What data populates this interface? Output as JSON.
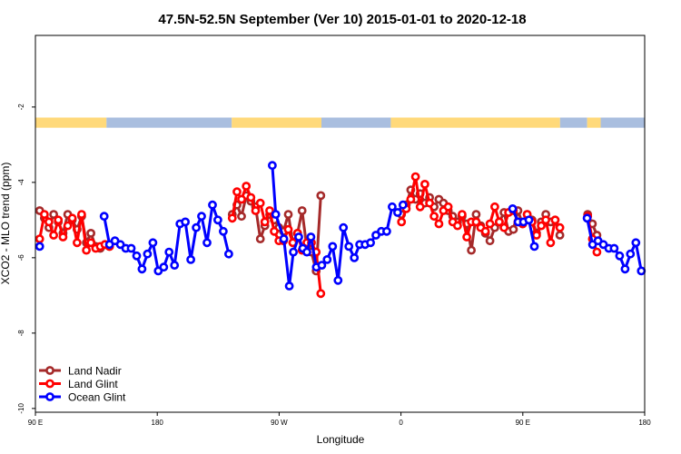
{
  "chart_data": {
    "type": "line",
    "title": "47.5N-52.5N September (Ver 10)   2015-01-01 to 2020-12-18",
    "xlabel": "Longitude",
    "ylabel": "XCO2 - MLO trend (ppm)",
    "xlim": [
      90,
      450
    ],
    "ylim": [
      -10.1,
      -0.1
    ],
    "x_ticks": [
      {
        "value": 90,
        "label": "90 E"
      },
      {
        "value": 162,
        "label": "180"
      },
      {
        "value": 234,
        "label": "90 W"
      },
      {
        "value": 306,
        "label": "0"
      },
      {
        "value": 378,
        "label": "90 E"
      },
      {
        "value": 450,
        "label": "180"
      }
    ],
    "y_ticks": [
      {
        "value": -2,
        "label": "-2"
      },
      {
        "value": -4,
        "label": "-4"
      },
      {
        "value": -6,
        "label": "-6"
      },
      {
        "value": -8,
        "label": "-8"
      },
      {
        "value": -10,
        "label": "-10"
      }
    ],
    "grid": false,
    "legend_position": "bottom-left",
    "land_ocean_strip": {
      "y_range": [
        -2.55,
        -2.28
      ],
      "land_color": "#FFD97A",
      "ocean_color": "#A9BEDF",
      "segments": [
        {
          "type": "land",
          "from": 90,
          "to": 132
        },
        {
          "type": "ocean",
          "from": 132,
          "to": 206
        },
        {
          "type": "land",
          "from": 206,
          "to": 259
        },
        {
          "type": "ocean",
          "from": 259,
          "to": 300
        },
        {
          "type": "land",
          "from": 300,
          "to": 400
        },
        {
          "type": "ocean",
          "from": 400,
          "to": 416
        },
        {
          "type": "land",
          "from": 416,
          "to": 424
        },
        {
          "type": "ocean",
          "from": 424,
          "to": 450
        }
      ]
    },
    "series": [
      {
        "name": "Land Nadir",
        "color": "#A52A2A",
        "segments": [
          {
            "x": [
              92.5,
              95.3,
              98.0,
              100.8,
              103.5,
              106.3,
              109.1,
              111.8,
              114.6,
              117.3,
              120.1,
              122.8,
              125.6,
              128.3,
              131.1,
              133.8
            ],
            "y": [
              -4.75,
              -4.95,
              -5.2,
              -4.85,
              -5.05,
              -5.35,
              -4.85,
              -5.0,
              -5.25,
              -4.9,
              -5.6,
              -5.35,
              -5.7,
              -5.75,
              -5.65,
              -5.7
            ]
          },
          {
            "x": [
              206.3,
              209.1,
              211.8,
              214.6,
              217.3,
              220.1,
              222.9,
              225.6,
              228.4,
              231.1,
              233.9,
              236.6,
              239.4,
              242.1,
              244.9,
              247.6,
              250.4,
              253.1,
              255.9,
              258.6
            ],
            "y": [
              -4.85,
              -4.6,
              -4.9,
              -4.35,
              -4.5,
              -4.65,
              -5.5,
              -5.15,
              -4.85,
              -5.0,
              -5.2,
              -5.3,
              -4.85,
              -5.6,
              -5.35,
              -4.75,
              -5.75,
              -5.85,
              -6.35,
              -4.35
            ]
          },
          {
            "x": [
              306.3,
              309.1,
              311.8,
              314.6,
              317.3,
              320.1,
              322.9,
              325.6,
              328.4,
              331.1,
              333.9,
              336.6,
              339.4,
              342.1,
              344.9,
              347.6,
              350.4,
              353.1,
              355.9,
              358.6,
              361.4,
              364.1,
              366.9,
              369.6,
              372.4,
              375.1,
              377.9,
              380.6,
              383.4,
              386.1,
              388.9,
              391.6,
              394.4,
              397.1,
              399.9
            ],
            "y": [
              -4.85,
              -4.6,
              -4.2,
              -4.45,
              -4.3,
              -4.55,
              -4.4,
              -4.65,
              -4.45,
              -4.55,
              -4.75,
              -4.9,
              -5.05,
              -4.9,
              -5.1,
              -5.8,
              -4.85,
              -5.15,
              -5.35,
              -5.55,
              -5.2,
              -5.05,
              -4.8,
              -5.3,
              -5.25,
              -4.75,
              -5.1,
              -4.85,
              -5.0,
              -5.35,
              -5.05,
              -4.85,
              -5.05,
              -5.0,
              -5.4
            ]
          },
          {
            "x": [
              416.3,
              419.1,
              421.8
            ],
            "y": [
              -4.85,
              -5.1,
              -5.4
            ]
          }
        ]
      },
      {
        "name": "Land Glint",
        "color": "#FF0000",
        "segments": [
          {
            "x": [
              92.5,
              95.3,
              98.0,
              100.8,
              103.5,
              106.3,
              109.1,
              111.8,
              114.6,
              117.3,
              120.1,
              122.8,
              125.6,
              128.3,
              131.1,
              133.8
            ],
            "y": [
              -5.5,
              -4.85,
              -5.05,
              -5.4,
              -5.0,
              -5.45,
              -5.15,
              -4.95,
              -5.6,
              -4.85,
              -5.8,
              -5.6,
              -5.75,
              -5.7,
              -5.65,
              -5.7
            ]
          },
          {
            "x": [
              206.3,
              209.1,
              211.8,
              214.6,
              217.3,
              220.1,
              222.9,
              225.6,
              228.4,
              231.1,
              233.9,
              236.6,
              239.4,
              242.1,
              244.9,
              247.6,
              250.4,
              253.1,
              255.9,
              258.6
            ],
            "y": [
              -4.95,
              -4.25,
              -4.45,
              -4.1,
              -4.4,
              -4.75,
              -4.55,
              -5.05,
              -4.75,
              -5.3,
              -5.55,
              -5.55,
              -5.25,
              -5.6,
              -5.35,
              -5.8,
              -5.6,
              -5.6,
              -5.85,
              -6.95
            ]
          },
          {
            "x": [
              306.3,
              309.1,
              311.8,
              314.6,
              317.3,
              320.1,
              322.9,
              325.6,
              328.4,
              331.1,
              333.9,
              336.6,
              339.4,
              342.1,
              344.9,
              347.6,
              350.4,
              353.1,
              355.9,
              358.6,
              361.4,
              364.1,
              366.9,
              369.6,
              372.4,
              375.1,
              377.9,
              380.6,
              383.4,
              386.1,
              388.9,
              391.6,
              394.4,
              397.1,
              399.9
            ],
            "y": [
              -5.05,
              -4.7,
              -4.45,
              -3.85,
              -4.65,
              -4.05,
              -4.55,
              -4.9,
              -5.1,
              -4.75,
              -4.65,
              -5.05,
              -5.15,
              -4.85,
              -5.45,
              -5.05,
              -5.05,
              -5.2,
              -5.3,
              -5.1,
              -4.65,
              -5.05,
              -5.2,
              -4.8,
              -4.75,
              -5.05,
              -5.1,
              -4.85,
              -5.05,
              -5.4,
              -5.15,
              -5.0,
              -5.6,
              -5.0,
              -5.2
            ]
          },
          {
            "x": [
              416.3,
              419.1,
              421.8
            ],
            "y": [
              -4.9,
              -5.5,
              -5.85
            ]
          }
        ]
      },
      {
        "name": "Ocean Glint",
        "color": "#0000FF",
        "segments": [
          {
            "x": [
              92.5
            ],
            "y": [
              -5.7
            ]
          },
          {
            "x": [
              130.6,
              133.8,
              137.0,
              140.2,
              143.4,
              146.6,
              149.8,
              153.0,
              156.2,
              159.4,
              162.6,
              165.8,
              169.0,
              172.2,
              175.4,
              178.6,
              181.8,
              185.0,
              188.2,
              191.4,
              194.6,
              197.8,
              201.0,
              204.2
            ],
            "y": [
              -4.9,
              -5.65,
              -5.55,
              -5.65,
              -5.75,
              -5.75,
              -5.95,
              -6.3,
              -5.9,
              -5.6,
              -6.35,
              -6.25,
              -5.85,
              -6.2,
              -5.1,
              -5.05,
              -6.05,
              -5.2,
              -4.9,
              -5.6,
              -4.6,
              -5.0,
              -5.3,
              -5.9
            ]
          },
          {
            "x": [
              230.0,
              232.0,
              236.8,
              240.0,
              242.4,
              245.6,
              248.0,
              250.4,
              252.8,
              256.0,
              259.2,
              262.4,
              265.6,
              268.8,
              272.0,
              275.2,
              278.4,
              281.6,
              284.8,
              288.0,
              291.2,
              294.4,
              297.6,
              300.8,
              304.0,
              307.2
            ],
            "y": [
              -3.55,
              -4.85,
              -5.5,
              -6.75,
              -5.85,
              -5.45,
              -5.75,
              -5.85,
              -5.45,
              -6.25,
              -6.2,
              -6.05,
              -5.7,
              -6.6,
              -5.2,
              -5.7,
              -6.0,
              -5.65,
              -5.65,
              -5.6,
              -5.4,
              -5.3,
              -5.3,
              -4.65,
              -4.8,
              -4.6
            ]
          },
          {
            "x": [
              372.0,
              375.2,
              378.4,
              381.6,
              384.8
            ],
            "y": [
              -4.7,
              -5.05,
              -5.05,
              -5.0,
              -5.7
            ]
          },
          {
            "x": [
              416.0,
              419.2,
              422.4,
              425.6,
              428.8,
              432.0,
              435.2,
              438.4,
              441.6,
              444.8,
              448.0
            ],
            "y": [
              -4.95,
              -5.65,
              -5.55,
              -5.65,
              -5.75,
              -5.75,
              -5.95,
              -6.3,
              -5.9,
              -5.6,
              -6.35
            ]
          }
        ]
      }
    ]
  }
}
